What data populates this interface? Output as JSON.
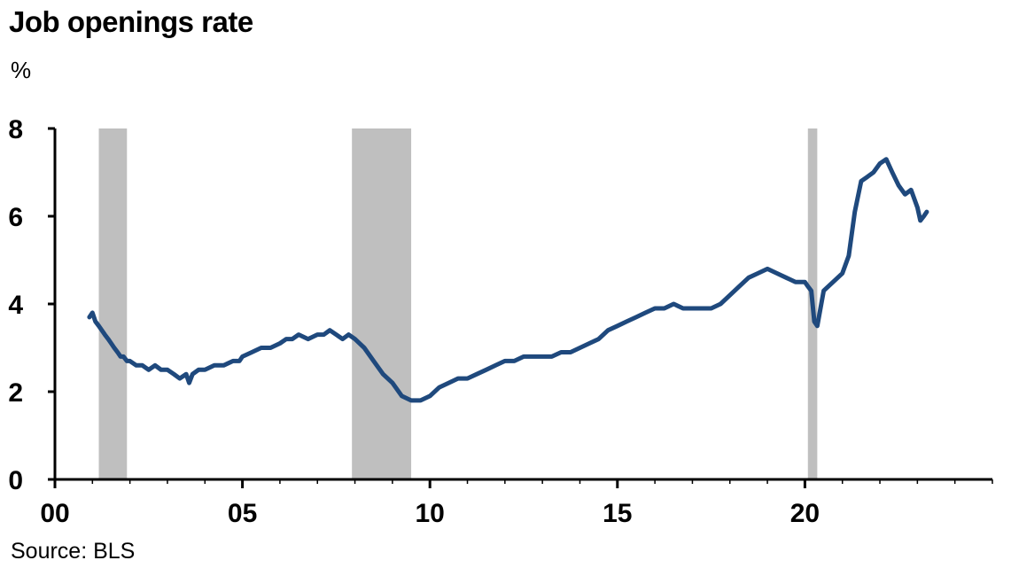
{
  "title": "Job openings rate",
  "unit": "%",
  "source": "Source: BLS",
  "chart_data": {
    "type": "line",
    "title": "Job openings rate",
    "ylabel": "%",
    "xlabel": "",
    "ylim": [
      0,
      8
    ],
    "xlim": [
      2000,
      2025
    ],
    "y_ticks": [
      "0",
      "2",
      "4",
      "6",
      "8"
    ],
    "x_ticks": [
      {
        "value": 2000,
        "label": "00"
      },
      {
        "value": 2005,
        "label": "05"
      },
      {
        "value": 2010,
        "label": "10"
      },
      {
        "value": 2015,
        "label": "15"
      },
      {
        "value": 2020,
        "label": "20"
      }
    ],
    "line_color": "#1f497d",
    "recession_color": "#bfbfbf",
    "recessions": [
      [
        2001.17,
        2001.92
      ],
      [
        2007.92,
        2009.5
      ],
      [
        2020.08,
        2020.33
      ]
    ],
    "series": [
      {
        "x": [
          2000.92,
          2001.0,
          2001.08,
          2001.17,
          2001.25,
          2001.33,
          2001.42,
          2001.5,
          2001.58,
          2001.67,
          2001.75,
          2001.83,
          2001.92,
          2002.0,
          2002.17,
          2002.33,
          2002.5,
          2002.67,
          2002.83,
          2003.0,
          2003.17,
          2003.33,
          2003.5,
          2003.58,
          2003.67,
          2003.83,
          2004.0,
          2004.25,
          2004.5,
          2004.75,
          2004.92,
          2005.0,
          2005.25,
          2005.5,
          2005.75,
          2006.0,
          2006.17,
          2006.33,
          2006.5,
          2006.75,
          2007.0,
          2007.17,
          2007.33,
          2007.5,
          2007.67,
          2007.83,
          2008.0,
          2008.25,
          2008.5,
          2008.75,
          2009.0,
          2009.25,
          2009.5,
          2009.75,
          2010.0,
          2010.25,
          2010.5,
          2010.75,
          2011.0,
          2011.25,
          2011.5,
          2011.75,
          2012.0,
          2012.25,
          2012.5,
          2012.75,
          2013.0,
          2013.25,
          2013.5,
          2013.75,
          2014.0,
          2014.25,
          2014.5,
          2014.75,
          2015.0,
          2015.25,
          2015.5,
          2015.75,
          2016.0,
          2016.25,
          2016.5,
          2016.75,
          2017.0,
          2017.25,
          2017.5,
          2017.75,
          2018.0,
          2018.25,
          2018.5,
          2018.75,
          2019.0,
          2019.25,
          2019.5,
          2019.75,
          2020.0,
          2020.08,
          2020.17,
          2020.25,
          2020.33,
          2020.5,
          2020.75,
          2021.0,
          2021.17,
          2021.33,
          2021.5,
          2021.67,
          2021.83,
          2022.0,
          2022.17,
          2022.33,
          2022.5,
          2022.67,
          2022.83,
          2023.0,
          2023.08,
          2023.17,
          2023.25
        ],
        "values": [
          3.7,
          3.8,
          3.6,
          3.5,
          3.4,
          3.3,
          3.2,
          3.1,
          3.0,
          2.9,
          2.8,
          2.8,
          2.7,
          2.7,
          2.6,
          2.6,
          2.5,
          2.6,
          2.5,
          2.5,
          2.4,
          2.3,
          2.4,
          2.2,
          2.4,
          2.5,
          2.5,
          2.6,
          2.6,
          2.7,
          2.7,
          2.8,
          2.9,
          3.0,
          3.0,
          3.1,
          3.2,
          3.2,
          3.3,
          3.2,
          3.3,
          3.3,
          3.4,
          3.3,
          3.2,
          3.3,
          3.2,
          3.0,
          2.7,
          2.4,
          2.2,
          1.9,
          1.8,
          1.8,
          1.9,
          2.1,
          2.2,
          2.3,
          2.3,
          2.4,
          2.5,
          2.6,
          2.7,
          2.7,
          2.8,
          2.8,
          2.8,
          2.8,
          2.9,
          2.9,
          3.0,
          3.1,
          3.2,
          3.4,
          3.5,
          3.6,
          3.7,
          3.8,
          3.9,
          3.9,
          4.0,
          3.9,
          3.9,
          3.9,
          3.9,
          4.0,
          4.2,
          4.4,
          4.6,
          4.7,
          4.8,
          4.7,
          4.6,
          4.5,
          4.5,
          4.4,
          4.3,
          3.6,
          3.5,
          4.3,
          4.5,
          4.7,
          5.1,
          6.1,
          6.8,
          6.9,
          7.0,
          7.2,
          7.3,
          7.0,
          6.7,
          6.5,
          6.6,
          6.2,
          5.9,
          6.0,
          6.1
        ]
      }
    ]
  }
}
